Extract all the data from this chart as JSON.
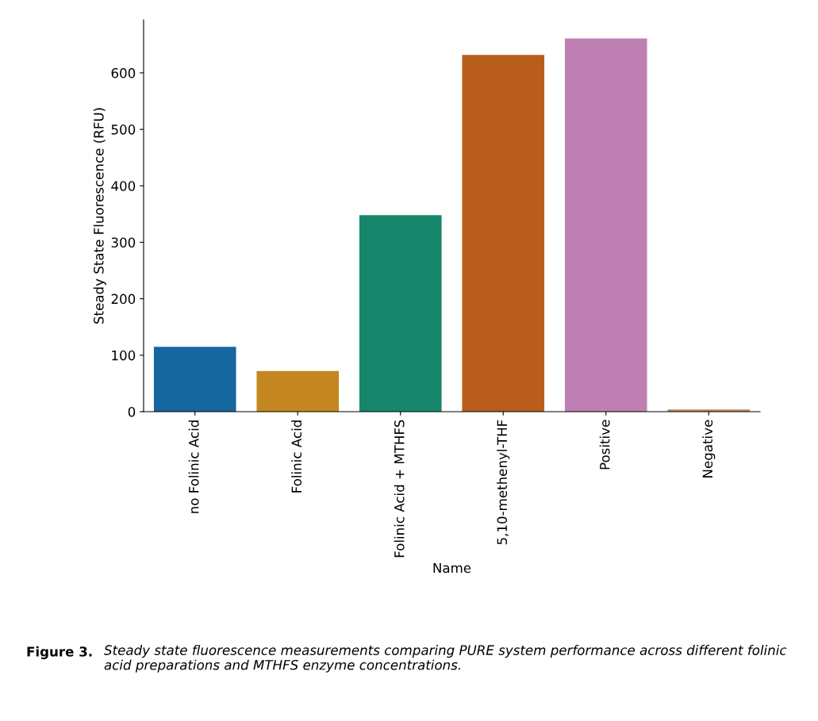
{
  "chart_data": {
    "type": "bar",
    "xlabel": "Name",
    "ylabel": "Steady State Fluorescence (RFU)",
    "categories": [
      "no Folinic Acid",
      "Folinic Acid",
      "Folinic Acid + MTHFS",
      "5,10-methenyl-THF",
      "Positive",
      "Negative"
    ],
    "values": [
      115,
      72,
      348,
      632,
      661,
      4
    ],
    "colors": [
      "#1667a0",
      "#c48720",
      "#16876a",
      "#b85d1c",
      "#be80b3",
      "#b8895f"
    ],
    "ylim": [
      0,
      694
    ],
    "yticks": [
      0,
      100,
      200,
      300,
      400,
      500,
      600
    ],
    "grid": false,
    "annotations": [
      "Figure 3.",
      "Steady state fluorescence measurements comparing PURE system performance across different folinic acid preparations and MTHFS enzyme concentrations."
    ]
  }
}
